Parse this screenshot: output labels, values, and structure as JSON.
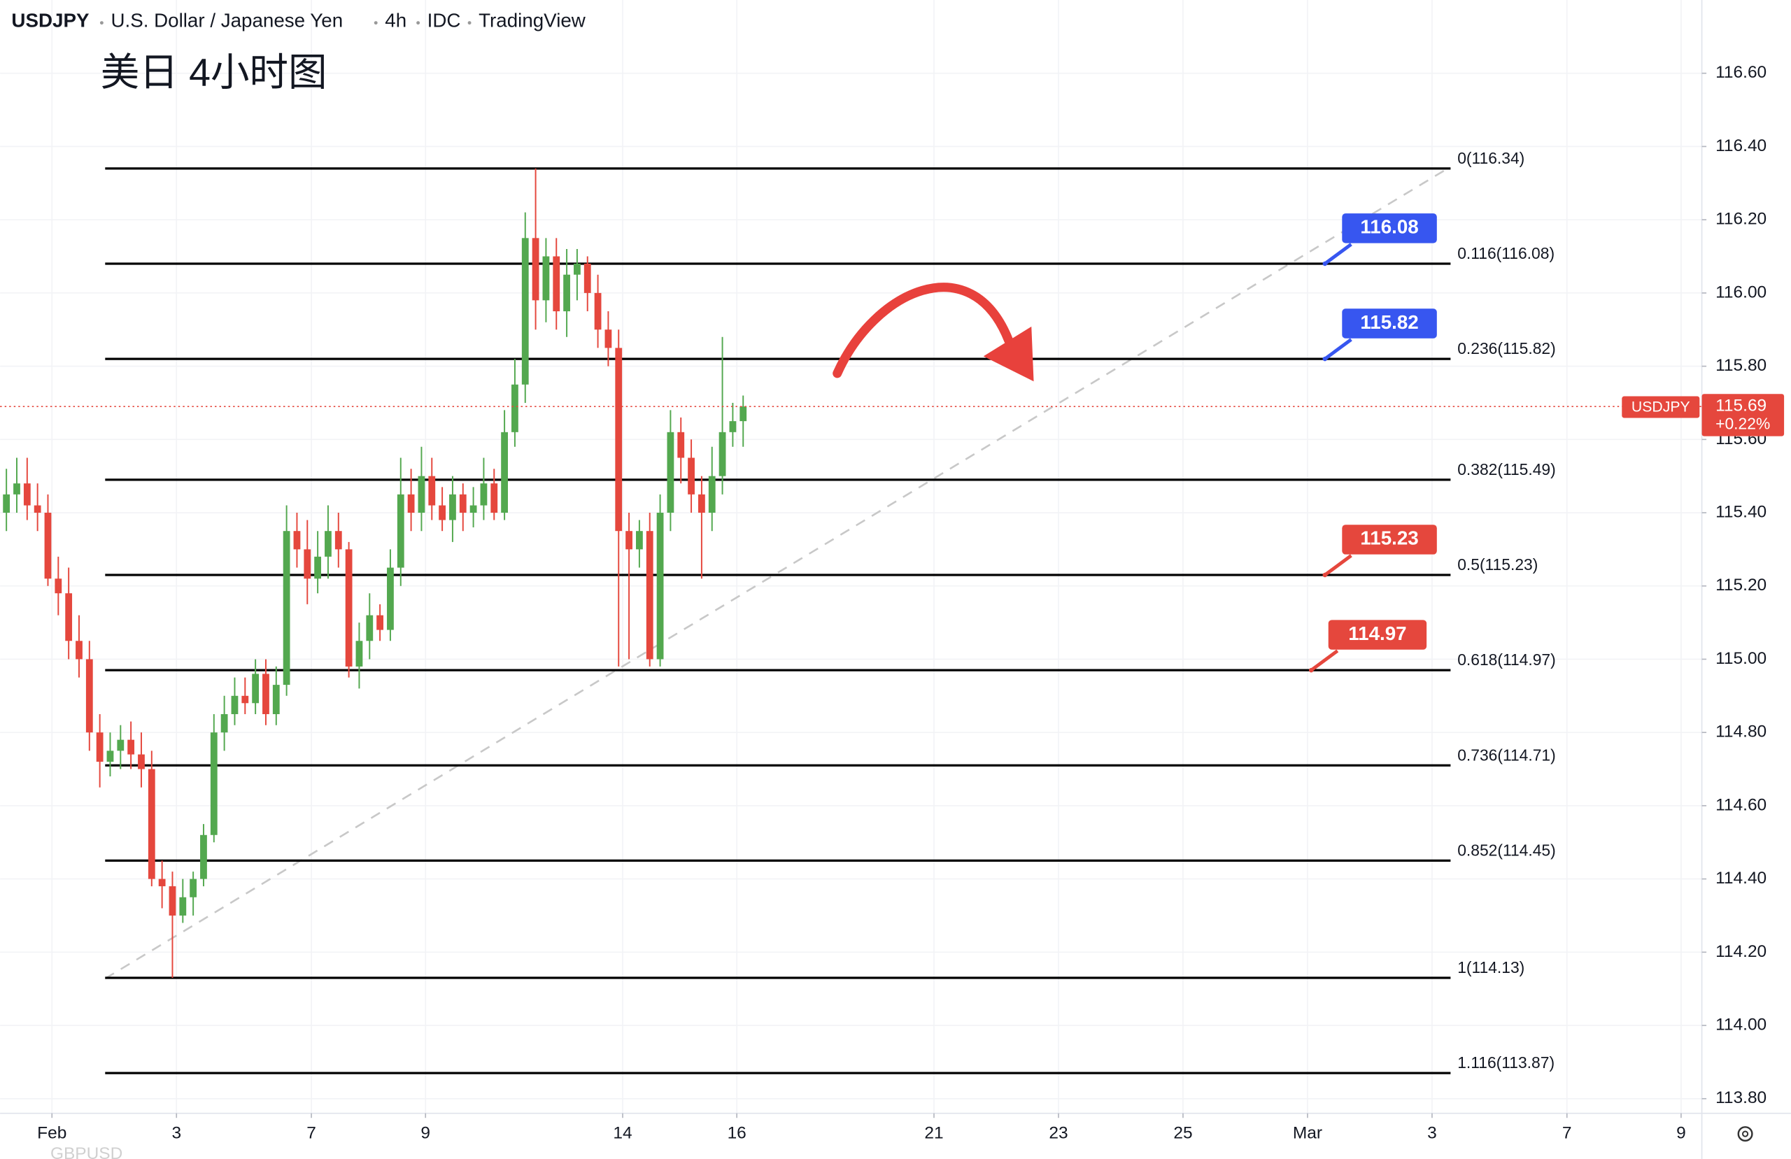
{
  "chart_data": {
    "type": "candlestick",
    "header": {
      "symbol": "USDJPY",
      "name": "U.S. Dollar / Japanese Yen",
      "interval": "4h",
      "source": "IDC",
      "platform": "TradingView"
    },
    "title": "美日 4小时图",
    "watermark_text": "GBPUSD",
    "up_color": "#53a84f",
    "down_color": "#e5473d",
    "grid": true,
    "xlim": [
      0,
      164
    ],
    "xticks": [
      {
        "value": 5,
        "label": "Feb"
      },
      {
        "value": 17,
        "label": "3"
      },
      {
        "value": 30,
        "label": "7"
      },
      {
        "value": 41,
        "label": "9"
      },
      {
        "value": 60,
        "label": "14"
      },
      {
        "value": 71,
        "label": "16"
      },
      {
        "value": 90,
        "label": "21"
      },
      {
        "value": 102,
        "label": "23"
      },
      {
        "value": 114,
        "label": "25"
      },
      {
        "value": 126,
        "label": "Mar"
      },
      {
        "value": 138,
        "label": "3"
      },
      {
        "value": 151,
        "label": "7"
      },
      {
        "value": 162,
        "label": "9"
      }
    ],
    "ylim": [
      113.76,
      116.8
    ],
    "yticks": [
      {
        "value": 113.8,
        "label": "113.80"
      },
      {
        "value": 114,
        "label": "114.00"
      },
      {
        "value": 114.2,
        "label": "114.20"
      },
      {
        "value": 114.4,
        "label": "114.40"
      },
      {
        "value": 114.6,
        "label": "114.60"
      },
      {
        "value": 114.8,
        "label": "114.80"
      },
      {
        "value": 115,
        "label": "115.00"
      },
      {
        "value": 115.2,
        "label": "115.20"
      },
      {
        "value": 115.4,
        "label": "115.40"
      },
      {
        "value": 115.6,
        "label": "115.60"
      },
      {
        "value": 115.8,
        "label": "115.80"
      },
      {
        "value": 116,
        "label": "116.00"
      },
      {
        "value": 116.2,
        "label": "116.20"
      },
      {
        "value": 116.4,
        "label": "116.40"
      },
      {
        "value": 116.6,
        "label": "116.60"
      }
    ],
    "open": [
      115.4,
      115.45,
      115.48,
      115.42,
      115.4,
      115.22,
      115.18,
      115.05,
      115.0,
      114.8,
      114.72,
      114.75,
      114.78,
      114.74,
      114.7,
      114.4,
      114.38,
      114.3,
      114.35,
      114.4,
      114.52,
      114.8,
      114.85,
      114.9,
      114.88,
      114.96,
      114.85,
      114.93,
      115.35,
      115.3,
      115.22,
      115.28,
      115.35,
      115.3,
      114.98,
      115.05,
      115.12,
      115.08,
      115.25,
      115.45,
      115.4,
      115.5,
      115.42,
      115.38,
      115.45,
      115.4,
      115.42,
      115.48,
      115.4,
      115.62,
      115.75,
      116.15,
      115.98,
      116.1,
      115.95,
      116.05,
      116.08,
      116.0,
      115.9,
      115.85,
      115.35,
      115.3,
      115.35,
      115.0,
      115.4,
      115.62,
      115.55,
      115.45,
      115.4,
      115.5,
      115.62,
      115.65
    ],
    "high": [
      115.52,
      115.55,
      115.55,
      115.48,
      115.45,
      115.28,
      115.25,
      115.12,
      115.05,
      114.85,
      114.8,
      114.82,
      114.83,
      114.8,
      114.75,
      114.45,
      114.42,
      114.4,
      114.42,
      114.55,
      114.85,
      114.9,
      114.95,
      114.95,
      115.0,
      115.0,
      114.98,
      115.42,
      115.4,
      115.38,
      115.35,
      115.42,
      115.4,
      115.32,
      115.1,
      115.18,
      115.15,
      115.3,
      115.55,
      115.52,
      115.58,
      115.55,
      115.47,
      115.5,
      115.48,
      115.47,
      115.55,
      115.52,
      115.68,
      115.82,
      116.22,
      116.34,
      116.15,
      116.15,
      116.12,
      116.12,
      116.1,
      116.05,
      115.95,
      115.9,
      115.4,
      115.38,
      115.4,
      115.45,
      115.68,
      115.66,
      115.6,
      115.5,
      115.58,
      115.88,
      115.7,
      115.72
    ],
    "low": [
      115.35,
      115.4,
      115.38,
      115.35,
      115.2,
      115.12,
      115.0,
      114.95,
      114.75,
      114.65,
      114.68,
      114.7,
      114.7,
      114.65,
      114.38,
      114.32,
      114.13,
      114.28,
      114.3,
      114.38,
      114.5,
      114.75,
      114.82,
      114.85,
      114.85,
      114.82,
      114.82,
      114.9,
      115.25,
      115.15,
      115.18,
      115.22,
      115.25,
      114.95,
      114.92,
      115.0,
      115.05,
      115.05,
      115.2,
      115.35,
      115.35,
      115.38,
      115.35,
      115.32,
      115.35,
      115.36,
      115.38,
      115.38,
      115.38,
      115.58,
      115.7,
      115.9,
      115.92,
      115.9,
      115.88,
      115.98,
      115.95,
      115.85,
      115.8,
      114.98,
      115.0,
      115.25,
      114.98,
      114.98,
      115.35,
      115.48,
      115.4,
      115.22,
      115.35,
      115.45,
      115.58,
      115.58
    ],
    "close": [
      115.45,
      115.48,
      115.42,
      115.4,
      115.22,
      115.18,
      115.05,
      115.0,
      114.8,
      114.72,
      114.75,
      114.78,
      114.74,
      114.7,
      114.4,
      114.38,
      114.3,
      114.35,
      114.4,
      114.52,
      114.8,
      114.85,
      114.9,
      114.88,
      114.96,
      114.85,
      114.93,
      115.35,
      115.3,
      115.22,
      115.28,
      115.35,
      115.3,
      114.98,
      115.05,
      115.12,
      115.08,
      115.25,
      115.45,
      115.4,
      115.5,
      115.42,
      115.38,
      115.45,
      115.4,
      115.42,
      115.48,
      115.4,
      115.62,
      115.75,
      116.15,
      115.98,
      116.1,
      115.95,
      116.05,
      116.08,
      116.0,
      115.9,
      115.85,
      115.35,
      115.3,
      115.35,
      115.0,
      115.4,
      115.62,
      115.55,
      115.45,
      115.4,
      115.5,
      115.62,
      115.65,
      115.69
    ],
    "fib_levels": [
      {
        "value": 116.34,
        "label": "0(116.34)"
      },
      {
        "value": 116.08,
        "label": "0.116(116.08)"
      },
      {
        "value": 115.82,
        "label": "0.236(115.82)"
      },
      {
        "value": 115.49,
        "label": "0.382(115.49)"
      },
      {
        "value": 115.23,
        "label": "0.5(115.23)"
      },
      {
        "value": 114.97,
        "label": "0.618(114.97)"
      },
      {
        "value": 114.71,
        "label": "0.736(114.71)"
      },
      {
        "value": 114.45,
        "label": "0.852(114.45)"
      },
      {
        "value": 114.13,
        "label": "1(114.13)"
      },
      {
        "value": 113.87,
        "label": "1.116(113.87)"
      }
    ],
    "price_labels": [
      {
        "value": 116.08,
        "color": "#3756f0"
      },
      {
        "value": 115.82,
        "color": "#3756f0"
      },
      {
        "value": 115.23,
        "color": "#e5473d"
      },
      {
        "value": 114.97,
        "color": "#e5473d"
      }
    ],
    "last_price": {
      "label": "USDJPY",
      "value": 115.69,
      "change": "+0.22%",
      "color": "#e5473d"
    }
  }
}
